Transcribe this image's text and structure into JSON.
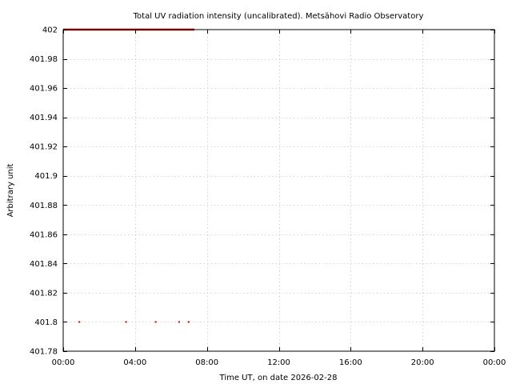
{
  "chart_data": {
    "type": "scatter",
    "title": "Total UV radiation intensity (uncalibrated). Metsähovi Radio Observatory",
    "xlabel": "Time UT, on date 2026-02-28",
    "ylabel": "Arbitrary unit",
    "xlim": [
      0,
      24
    ],
    "ylim": [
      401.78,
      402.0
    ],
    "x_ticks": [
      0,
      4,
      8,
      12,
      16,
      20,
      24
    ],
    "x_tick_labels": [
      "00:00",
      "04:00",
      "08:00",
      "12:00",
      "16:00",
      "20:00",
      "00:00"
    ],
    "y_ticks": [
      401.78,
      401.8,
      401.82,
      401.84,
      401.86,
      401.88,
      401.9,
      401.92,
      401.94,
      401.96,
      401.98,
      402
    ],
    "y_tick_labels": [
      "401.78",
      "401.8",
      "401.82",
      "401.84",
      "401.86",
      "401.88",
      "401.9",
      "401.92",
      "401.94",
      "401.96",
      "401.98",
      "402"
    ],
    "grid": true,
    "series": [
      {
        "color": "#cc0000",
        "style": "line",
        "x": [
          0,
          7.3
        ],
        "y": [
          402,
          402
        ]
      },
      {
        "color": "#cc0000",
        "style": "points",
        "x": [
          0.9,
          3.5,
          5.15,
          6.45,
          6.98
        ],
        "y": [
          401.8,
          401.8,
          401.8,
          401.8,
          401.8
        ]
      }
    ]
  }
}
